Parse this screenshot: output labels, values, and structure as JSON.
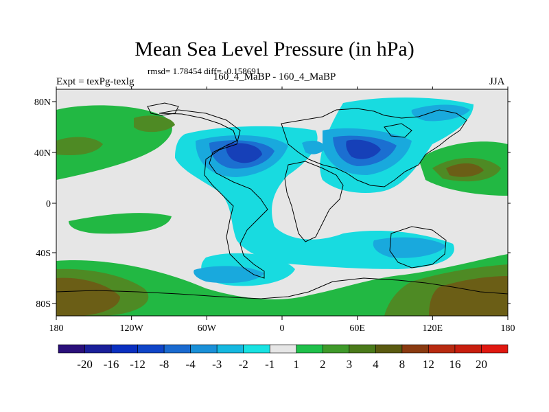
{
  "chart_data": {
    "type": "heatmap",
    "title": "Mean Sea Level Pressure (in hPa)",
    "stats_text": "rmsd= 1.78454 diff= -0.158691",
    "left_label": "Expt = texPg-texlg",
    "center_label": "160_4_MaBP - 160_4_MaBP",
    "right_label": "JJA",
    "x_ticks": [
      "180",
      "120W",
      "60W",
      "0",
      "60E",
      "120E",
      "180"
    ],
    "y_ticks": [
      "80N",
      "40N",
      "0",
      "40S",
      "80S"
    ],
    "colorbar_labels": [
      "-20",
      "-16",
      "-12",
      "-8",
      "-4",
      "-3",
      "-2",
      "-1",
      "1",
      "2",
      "3",
      "4",
      "8",
      "12",
      "16",
      "20"
    ],
    "colorbar_colors": [
      "#2a0f7a",
      "#1a1f9a",
      "#0a2fc0",
      "#0f45c8",
      "#1a6ad0",
      "#1a90d8",
      "#15b8e0",
      "#18e2e2",
      "#e6e6e6",
      "#1fc04a",
      "#3f9a2a",
      "#4a7a1a",
      "#5a5a10",
      "#8a3a10",
      "#b82a10",
      "#c81e0e",
      "#e01810"
    ],
    "map_colors": {
      "background": "#e6e6e6",
      "pos1": "#22b843",
      "pos2": "#4e8a24",
      "pos3": "#6b5e16",
      "neg1": "#18dbe0",
      "neg2": "#19a9dd",
      "neg3": "#1b6fd1",
      "neg4": "#1640b8",
      "land_outline": "#000000"
    }
  }
}
